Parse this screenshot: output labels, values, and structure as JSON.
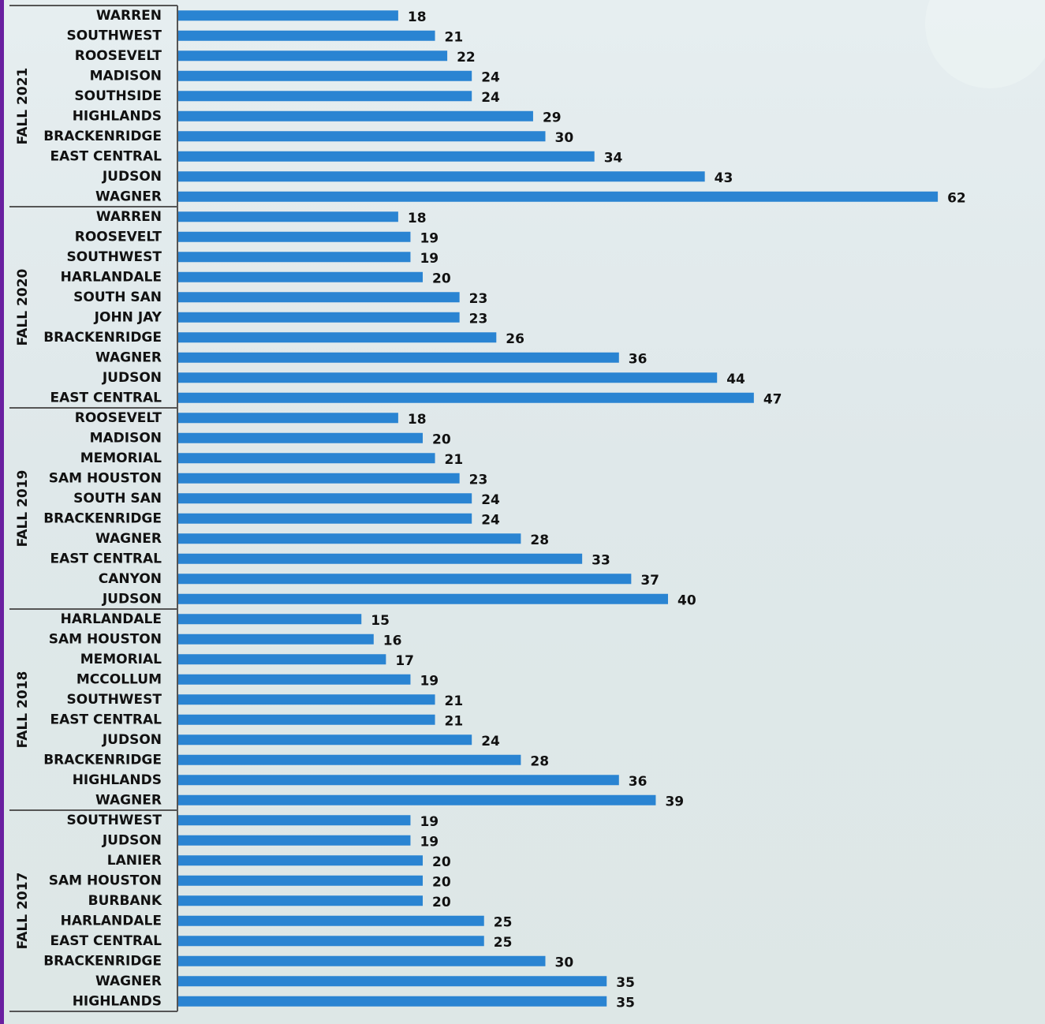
{
  "chart_data": {
    "type": "bar",
    "color": "#2a84d2",
    "groups": [
      {
        "name": "FALL 2021",
        "categories": [
          "WARREN",
          "SOUTHWEST",
          "ROOSEVELT",
          "MADISON",
          "SOUTHSIDE",
          "HIGHLANDS",
          "BRACKENRIDGE",
          "EAST CENTRAL",
          "JUDSON",
          "WAGNER"
        ],
        "values": [
          18,
          21,
          22,
          24,
          24,
          29,
          30,
          34,
          43,
          62
        ]
      },
      {
        "name": "FALL 2020",
        "categories": [
          "WARREN",
          "ROOSEVELT",
          "SOUTHWEST",
          "HARLANDALE",
          "SOUTH SAN",
          "JOHN JAY",
          "BRACKENRIDGE",
          "WAGNER",
          "JUDSON",
          "EAST CENTRAL"
        ],
        "values": [
          18,
          19,
          19,
          20,
          23,
          23,
          26,
          36,
          44,
          47
        ]
      },
      {
        "name": "FALL 2019",
        "categories": [
          "ROOSEVELT",
          "MADISON",
          "MEMORIAL",
          "SAM HOUSTON",
          "SOUTH SAN",
          "BRACKENRIDGE",
          "WAGNER",
          "EAST CENTRAL",
          "CANYON",
          "JUDSON"
        ],
        "values": [
          18,
          20,
          21,
          23,
          24,
          24,
          28,
          33,
          37,
          40
        ]
      },
      {
        "name": "FALL 2018",
        "categories": [
          "HARLANDALE",
          "SAM HOUSTON",
          "MEMORIAL",
          "MCCOLLUM",
          "SOUTHWEST",
          "EAST CENTRAL",
          "JUDSON",
          "BRACKENRIDGE",
          "HIGHLANDS",
          "WAGNER"
        ],
        "values": [
          15,
          16,
          17,
          19,
          21,
          21,
          24,
          28,
          36,
          39
        ]
      },
      {
        "name": "FALL 2017",
        "categories": [
          "SOUTHWEST",
          "JUDSON",
          "LANIER",
          "SAM HOUSTON",
          "BURBANK",
          "HARLANDALE",
          "EAST CENTRAL",
          "BRACKENRIDGE",
          "WAGNER",
          "HIGHLANDS"
        ],
        "values": [
          19,
          19,
          20,
          20,
          20,
          25,
          25,
          30,
          35,
          35
        ]
      }
    ]
  }
}
